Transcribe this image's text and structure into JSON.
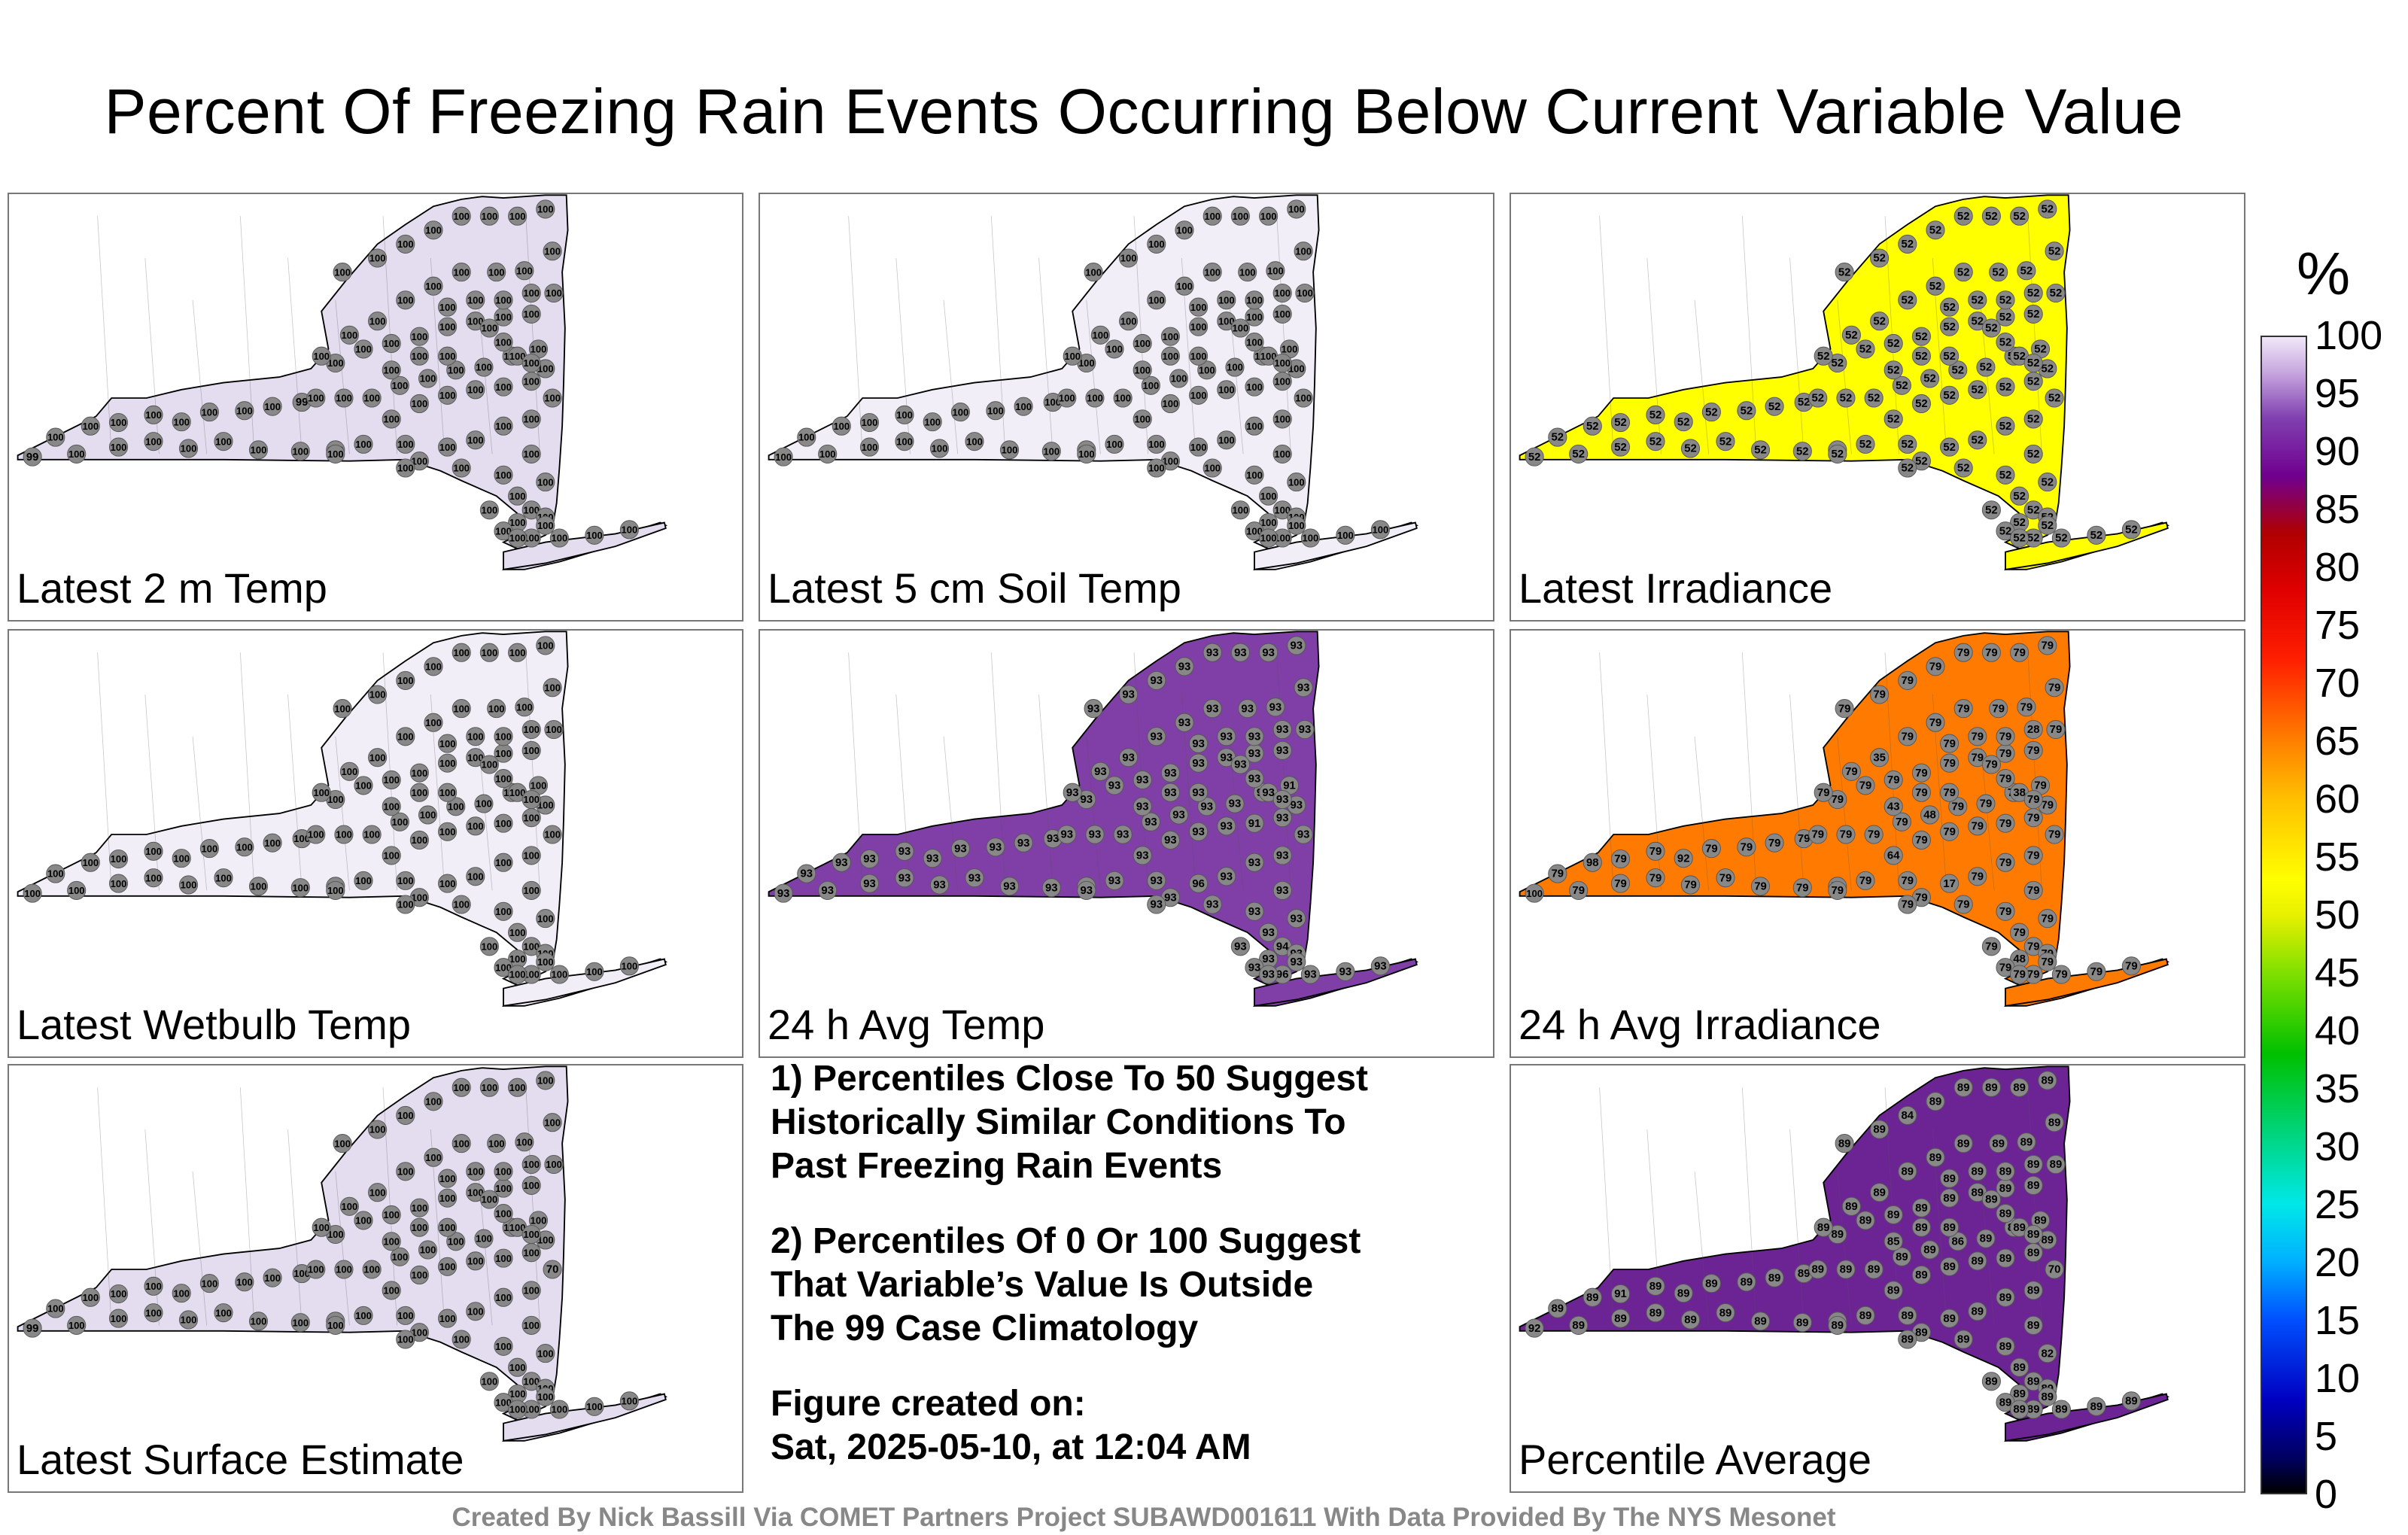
{
  "title": "Percent Of Freezing Rain Events Occurring Below Current Variable Value",
  "colorbar": {
    "unit": "%",
    "ticks": [
      "100",
      "95",
      "90",
      "85",
      "80",
      "75",
      "70",
      "65",
      "60",
      "55",
      "50",
      "45",
      "40",
      "35",
      "30",
      "25",
      "20",
      "15",
      "10",
      "5",
      "0"
    ]
  },
  "panels": [
    {
      "label": "Latest 2 m Temp",
      "fill": "#e4dcef",
      "base": "100",
      "special": [
        {
          "v": "99",
          "i": 0
        },
        {
          "v": "99",
          "i": 9
        }
      ]
    },
    {
      "label": "Latest 5 cm Soil Temp",
      "fill": "#f2eef8",
      "base": "100",
      "special": []
    },
    {
      "label": "Latest Irradiance",
      "fill": "#ffff00",
      "base": "52",
      "special": []
    },
    {
      "label": "Latest Wetbulb Temp",
      "fill": "#f2eef8",
      "base": "100",
      "special": []
    },
    {
      "label": "24 h Avg Temp",
      "fill": "#7f3fa6",
      "base": "93",
      "special": [
        {
          "v": "91",
          "i": 24
        },
        {
          "v": "91",
          "i": 27
        },
        {
          "v": "96",
          "i": 70
        },
        {
          "v": "94",
          "i": 78
        },
        {
          "v": "96",
          "i": 82
        }
      ]
    },
    {
      "label": "24 h Avg Irradiance",
      "fill": "#ff7a00",
      "base": "79",
      "special": [
        {
          "v": "100",
          "i": 0
        },
        {
          "v": "98",
          "i": 2
        },
        {
          "v": "92",
          "i": 5
        },
        {
          "v": "64",
          "i": 20
        },
        {
          "v": "48",
          "i": 31
        },
        {
          "v": "35",
          "i": 50
        },
        {
          "v": "28",
          "i": 62
        },
        {
          "v": "17",
          "i": 70
        },
        {
          "v": "48",
          "i": 80
        },
        {
          "v": "38",
          "i": 92
        },
        {
          "v": "43",
          "i": 96
        }
      ]
    },
    {
      "label": "Latest Surface Estimate",
      "fill": "#e4dcef",
      "base": "100",
      "special": [
        {
          "v": "99",
          "i": 0
        },
        {
          "v": "70",
          "i": 66
        }
      ]
    },
    {
      "label": "Percentile Average",
      "fill": "#6c2494",
      "base": "89",
      "special": [
        {
          "v": "92",
          "i": 0
        },
        {
          "v": "91",
          "i": 3
        },
        {
          "v": "86",
          "i": 30
        },
        {
          "v": "84",
          "i": 55
        },
        {
          "v": "82",
          "i": 75
        },
        {
          "v": "70",
          "i": 66
        },
        {
          "v": "85",
          "i": 96
        }
      ]
    }
  ],
  "notes": [
    "1) Percentiles Close To 50 Suggest\nHistorically Similar Conditions To\nPast Freezing Rain Events",
    "2) Percentiles Of 0 Or 100 Suggest\nThat Variable’s Value Is Outside\nThe 99 Case Climatology",
    "Figure created on:\nSat, 2025-05-10, at 12:04 AM"
  ],
  "credit": "Created By Nick Bassill Via COMET Partners Project SUBAWD001611 With Data Provided By The NYS Mesonet"
}
